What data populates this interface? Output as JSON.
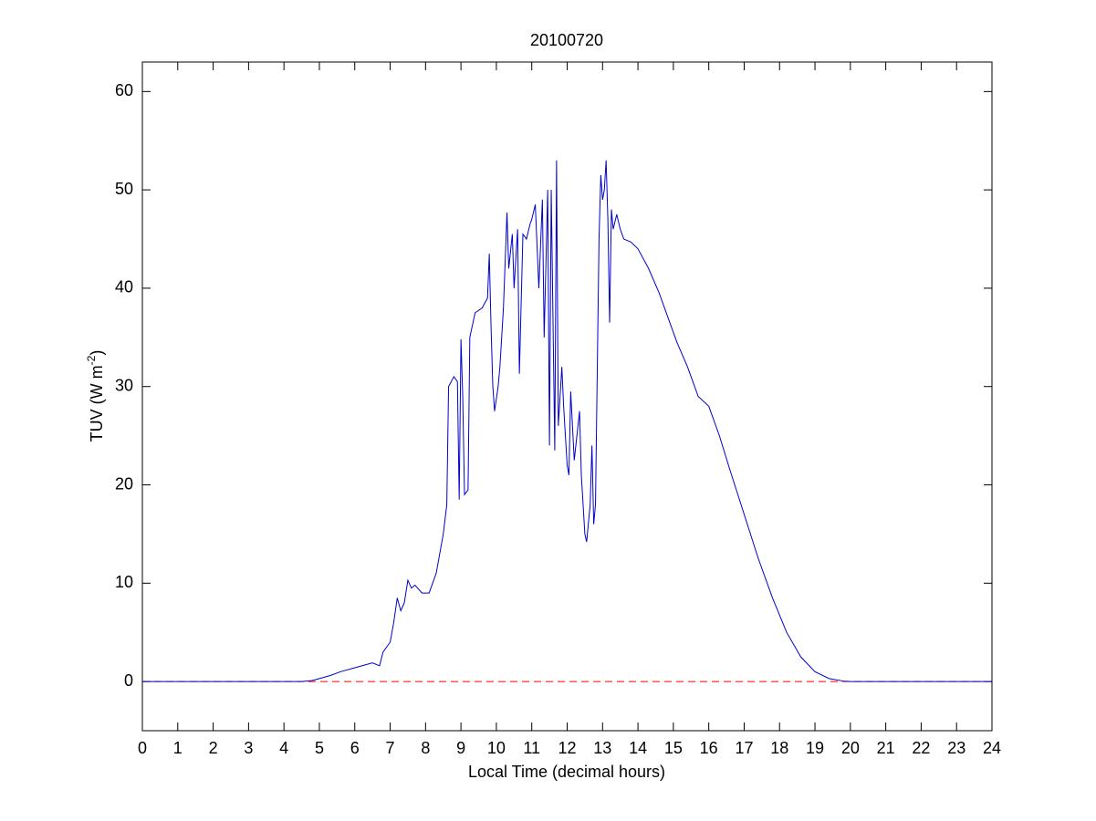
{
  "chart_data": {
    "type": "line",
    "title": "20100720",
    "x_label": "Local Time (decimal hours)",
    "y_label": {
      "text": "TUV (W m",
      "superscript": "-2",
      "suffix": ")"
    },
    "xlim": [
      0,
      24
    ],
    "xticks": [
      0,
      1,
      2,
      3,
      4,
      5,
      6,
      7,
      8,
      9,
      10,
      11,
      12,
      13,
      14,
      15,
      16,
      17,
      18,
      19,
      20,
      21,
      22,
      23,
      24
    ],
    "ylim": [
      -5,
      63
    ],
    "yticks": [
      0,
      10,
      20,
      30,
      40,
      50,
      60
    ],
    "reference_line": {
      "y": 0,
      "color": "#ff0000",
      "style": "dashed"
    },
    "series": [
      {
        "color": "#0000cc",
        "x": [
          0,
          4.5,
          4.8,
          5.0,
          5.3,
          5.6,
          5.9,
          6.2,
          6.5,
          6.7,
          6.8,
          7.0,
          7.1,
          7.2,
          7.3,
          7.4,
          7.5,
          7.6,
          7.7,
          7.9,
          8.1,
          8.3,
          8.5,
          8.6,
          8.65,
          8.8,
          8.9,
          8.95,
          9.0,
          9.05,
          9.1,
          9.2,
          9.25,
          9.4,
          9.6,
          9.75,
          9.8,
          9.85,
          9.9,
          9.95,
          10.05,
          10.1,
          10.2,
          10.3,
          10.35,
          10.45,
          10.5,
          10.6,
          10.65,
          10.75,
          10.85,
          10.95,
          11.0,
          11.1,
          11.2,
          11.3,
          11.35,
          11.45,
          11.5,
          11.55,
          11.65,
          11.7,
          11.75,
          11.85,
          11.9,
          12.0,
          12.05,
          12.1,
          12.2,
          12.35,
          12.4,
          12.5,
          12.55,
          12.65,
          12.7,
          12.75,
          12.8,
          12.9,
          12.95,
          13.0,
          13.05,
          13.1,
          13.15,
          13.2,
          13.25,
          13.3,
          13.4,
          13.5,
          13.6,
          13.8,
          14.0,
          14.3,
          14.6,
          14.9,
          15.1,
          15.4,
          15.7,
          16.0,
          16.3,
          16.6,
          17.0,
          17.4,
          17.8,
          18.2,
          18.6,
          19.0,
          19.4,
          19.8,
          20.0,
          24
        ],
        "values": [
          0,
          0,
          0.1,
          0.3,
          0.6,
          1.0,
          1.3,
          1.6,
          1.9,
          1.6,
          3.0,
          4.0,
          6.0,
          8.5,
          7.2,
          8.0,
          10.3,
          9.5,
          9.8,
          9.0,
          9.0,
          11.0,
          15.0,
          18.0,
          30.0,
          31.0,
          30.5,
          18.5,
          34.8,
          29.0,
          19.0,
          19.5,
          35.0,
          37.5,
          38.0,
          39.0,
          43.5,
          36.0,
          30.0,
          27.5,
          30.0,
          32.0,
          38.0,
          47.7,
          42.0,
          45.5,
          40.0,
          46.0,
          31.3,
          45.5,
          45.0,
          46.5,
          47.0,
          48.5,
          40.0,
          49.0,
          35.0,
          50.0,
          24.0,
          50.0,
          23.5,
          53.0,
          26.0,
          32.0,
          28.0,
          22.0,
          21.0,
          29.5,
          22.5,
          27.5,
          21.0,
          15.0,
          14.2,
          18.0,
          24.0,
          16.0,
          18.0,
          45.0,
          51.5,
          49.0,
          50.0,
          53.0,
          47.0,
          36.5,
          48.0,
          46.0,
          47.5,
          46.0,
          45.0,
          44.7,
          44.0,
          42.0,
          39.5,
          36.5,
          34.5,
          32.0,
          29.0,
          28.0,
          25.0,
          21.5,
          17.0,
          12.5,
          8.5,
          5.0,
          2.5,
          1.0,
          0.3,
          0.05,
          0,
          0
        ]
      }
    ]
  }
}
